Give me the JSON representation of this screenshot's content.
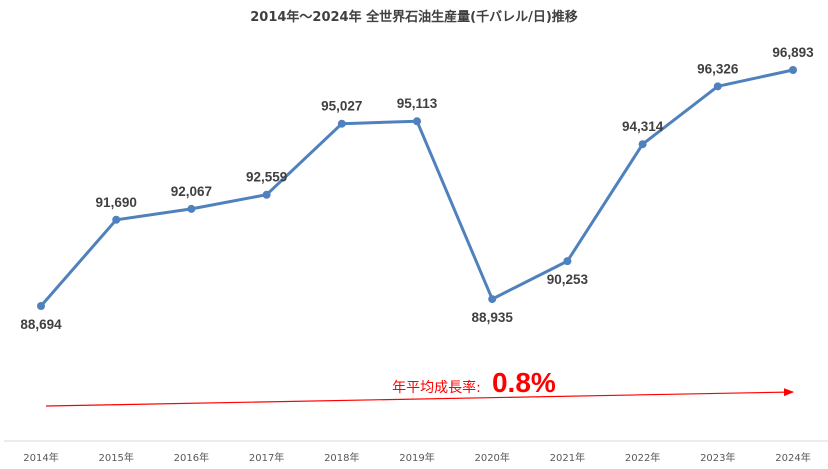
{
  "chart_data": {
    "type": "line",
    "title": "2014年～2024年  全世界石油生産量(千バレル/日)推移",
    "categories": [
      "2014年",
      "2015年",
      "2016年",
      "2017年",
      "2018年",
      "2019年",
      "2020年",
      "2021年",
      "2022年",
      "2023年",
      "2024年"
    ],
    "values": [
      88694,
      91690,
      92067,
      92559,
      95027,
      95113,
      88935,
      90253,
      94314,
      96326,
      96893
    ],
    "data_labels": [
      "88,694",
      "91,690",
      "92,067",
      "92,559",
      "95,027",
      "95,113",
      "88,935",
      "90,253",
      "94,314",
      "96,326",
      "96,893"
    ],
    "label_positions": [
      "below",
      "above",
      "above",
      "above",
      "above",
      "above",
      "below",
      "below",
      "above",
      "above",
      "above"
    ],
    "ylim": [
      87000,
      98000
    ],
    "grid": false,
    "axis_visible": false,
    "line_color": "#4f81bd",
    "annotation": {
      "label": "年平均成長率:",
      "value": "0.8%",
      "color": "#ff0000"
    }
  }
}
